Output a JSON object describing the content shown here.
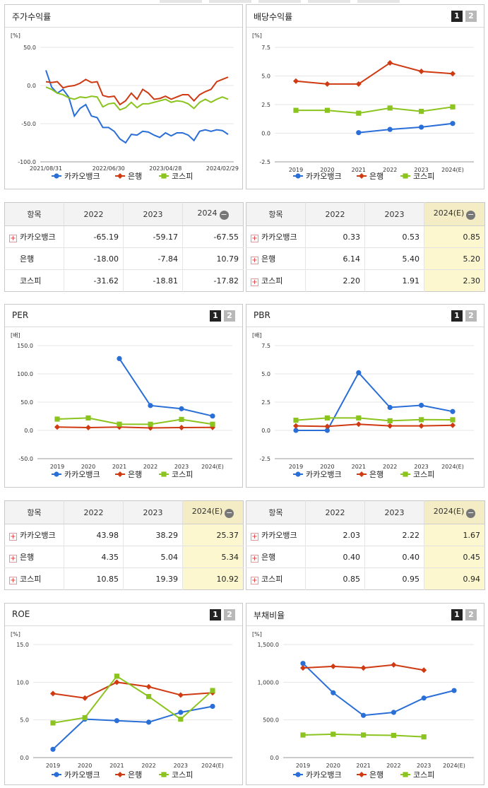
{
  "colors": {
    "kakao": "#2a6ed8",
    "bank": "#cf3a12",
    "kospi": "#8bc41e"
  },
  "legend": [
    "카카오뱅크",
    "은행",
    "코스피"
  ],
  "stock_return": {
    "title": "주가수익률",
    "unit": "[%]",
    "chart_data": {
      "type": "line",
      "title": "주가수익률",
      "ylabel": "[%]",
      "ylim": [
        -100,
        50
      ],
      "yticks": [
        "50.0",
        "0.0",
        "-50.0",
        "-100.0"
      ],
      "xticks": [
        "2021/08/31",
        "2022/06/30",
        "2023/04/28",
        "2024/02/29"
      ],
      "series": [
        {
          "name": "카카오뱅크",
          "values": [
            20,
            -2,
            -10,
            -5,
            -15,
            -40,
            -30,
            -25,
            -40,
            -42,
            -55,
            -55,
            -60,
            -70,
            -75,
            -64,
            -65,
            -60,
            -61,
            -65,
            -68,
            -62,
            -66,
            -62,
            -62,
            -65,
            -72,
            -60,
            -58,
            -60,
            -58,
            -59,
            -64
          ]
        },
        {
          "name": "은행",
          "values": [
            5,
            4,
            5,
            -3,
            -1,
            0,
            3,
            8,
            4,
            5,
            -13,
            -15,
            -14,
            -25,
            -20,
            -10,
            -18,
            -5,
            -10,
            -18,
            -17,
            -14,
            -18,
            -15,
            -12,
            -12,
            -20,
            -12,
            -8,
            -5,
            5,
            8,
            11
          ]
        },
        {
          "name": "코스피",
          "values": [
            -2,
            -5,
            -10,
            -12,
            -16,
            -18,
            -15,
            -16,
            -14,
            -15,
            -28,
            -24,
            -23,
            -32,
            -29,
            -22,
            -29,
            -24,
            -24,
            -22,
            -20,
            -18,
            -22,
            -20,
            -21,
            -24,
            -30,
            -22,
            -18,
            -22,
            -18,
            -15,
            -18
          ]
        }
      ]
    },
    "table": {
      "header": [
        "항목",
        "2022",
        "2023",
        "2024"
      ],
      "rows": [
        {
          "name": "카카오뱅크",
          "plus": true,
          "v": [
            "-65.19",
            "-59.17",
            "-67.55"
          ]
        },
        {
          "name": "은행",
          "plus": false,
          "v": [
            "-18.00",
            "-7.84",
            "10.79"
          ]
        },
        {
          "name": "코스피",
          "plus": false,
          "v": [
            "-31.62",
            "-18.81",
            "-17.82"
          ]
        }
      ]
    }
  },
  "dividend": {
    "title": "배당수익률",
    "unit": "[%]",
    "pages": [
      "1",
      "2"
    ],
    "chart_data": {
      "type": "line",
      "title": "배당수익률",
      "ylabel": "[%]",
      "ylim": [
        -2.5,
        7.5
      ],
      "yticks": [
        "7.5",
        "5.0",
        "2.5",
        "0.0",
        "-2.5"
      ],
      "categories": [
        "2019",
        "2020",
        "2021",
        "2022",
        "2023",
        "2024(E)"
      ],
      "series": [
        {
          "name": "카카오뱅크",
          "values": [
            null,
            null,
            0.05,
            0.33,
            0.53,
            0.85
          ]
        },
        {
          "name": "은행",
          "values": [
            4.55,
            4.3,
            4.3,
            6.14,
            5.4,
            5.2
          ]
        },
        {
          "name": "코스피",
          "values": [
            2.0,
            2.0,
            1.75,
            2.2,
            1.91,
            2.3
          ]
        }
      ]
    },
    "table": {
      "header": [
        "항목",
        "2022",
        "2023",
        "2024(E)"
      ],
      "rows": [
        {
          "name": "카카오뱅크",
          "plus": true,
          "v": [
            "0.33",
            "0.53",
            "0.85"
          ]
        },
        {
          "name": "은행",
          "plus": true,
          "v": [
            "6.14",
            "5.40",
            "5.20"
          ]
        },
        {
          "name": "코스피",
          "plus": true,
          "v": [
            "2.20",
            "1.91",
            "2.30"
          ]
        }
      ]
    }
  },
  "per": {
    "title": "PER",
    "unit": "[배]",
    "pages": [
      "1",
      "2"
    ],
    "chart_data": {
      "type": "line",
      "title": "PER",
      "ylabel": "[배]",
      "ylim": [
        -50,
        150
      ],
      "yticks": [
        "150.0",
        "100.0",
        "50.0",
        "0.0",
        "-50.0"
      ],
      "categories": [
        "2019",
        "2020",
        "2021",
        "2022",
        "2023",
        "2024(E)"
      ],
      "series": [
        {
          "name": "카카오뱅크",
          "values": [
            null,
            null,
            127,
            43.98,
            38.29,
            25.37
          ]
        },
        {
          "name": "은행",
          "values": [
            6,
            5,
            6,
            4.35,
            5.04,
            5.34
          ]
        },
        {
          "name": "코스피",
          "values": [
            20,
            22,
            11,
            10.85,
            19.39,
            10.92
          ]
        }
      ]
    },
    "table": {
      "header": [
        "항목",
        "2022",
        "2023",
        "2024(E)"
      ],
      "rows": [
        {
          "name": "카카오뱅크",
          "plus": true,
          "v": [
            "43.98",
            "38.29",
            "25.37"
          ]
        },
        {
          "name": "은행",
          "plus": true,
          "v": [
            "4.35",
            "5.04",
            "5.34"
          ]
        },
        {
          "name": "코스피",
          "plus": true,
          "v": [
            "10.85",
            "19.39",
            "10.92"
          ]
        }
      ]
    }
  },
  "pbr": {
    "title": "PBR",
    "unit": "[배]",
    "pages": [
      "1",
      "2"
    ],
    "chart_data": {
      "type": "line",
      "title": "PBR",
      "ylabel": "[배]",
      "ylim": [
        -2.5,
        7.5
      ],
      "yticks": [
        "7.5",
        "5.0",
        "2.5",
        "0.0",
        "-2.5"
      ],
      "categories": [
        "2019",
        "2020",
        "2021",
        "2022",
        "2023",
        "2024(E)"
      ],
      "series": [
        {
          "name": "카카오뱅크",
          "values": [
            0,
            0,
            5.1,
            2.03,
            2.22,
            1.67
          ]
        },
        {
          "name": "은행",
          "values": [
            0.4,
            0.35,
            0.55,
            0.4,
            0.4,
            0.45
          ]
        },
        {
          "name": "코스피",
          "values": [
            0.9,
            1.1,
            1.1,
            0.85,
            0.95,
            0.94
          ]
        }
      ]
    },
    "table": {
      "header": [
        "항목",
        "2022",
        "2023",
        "2024(E)"
      ],
      "rows": [
        {
          "name": "카카오뱅크",
          "plus": true,
          "v": [
            "2.03",
            "2.22",
            "1.67"
          ]
        },
        {
          "name": "은행",
          "plus": true,
          "v": [
            "0.40",
            "0.40",
            "0.45"
          ]
        },
        {
          "name": "코스피",
          "plus": true,
          "v": [
            "0.85",
            "0.95",
            "0.94"
          ]
        }
      ]
    }
  },
  "roe": {
    "title": "ROE",
    "unit": "[%]",
    "pages": [
      "1",
      "2"
    ],
    "chart_data": {
      "type": "line",
      "title": "ROE",
      "ylabel": "[%]",
      "ylim": [
        0,
        15
      ],
      "yticks": [
        "15.0",
        "10.0",
        "5.0",
        "0.0"
      ],
      "categories": [
        "2019",
        "2020",
        "2021",
        "2022",
        "2023",
        "2024(E)"
      ],
      "series": [
        {
          "name": "카카오뱅크",
          "values": [
            1.1,
            5.1,
            4.9,
            4.7,
            6.0,
            6.8
          ]
        },
        {
          "name": "은행",
          "values": [
            8.5,
            7.9,
            10.0,
            9.4,
            8.3,
            8.6
          ]
        },
        {
          "name": "코스피",
          "values": [
            4.6,
            5.3,
            10.8,
            8.1,
            5.1,
            8.9
          ]
        }
      ]
    }
  },
  "debt": {
    "title": "부채비율",
    "unit": "[%]",
    "pages": [
      "1",
      "2"
    ],
    "chart_data": {
      "type": "line",
      "title": "부채비율",
      "ylabel": "[%]",
      "ylim": [
        0,
        1500
      ],
      "yticks": [
        "1,500.0",
        "1,000.0",
        "500.0",
        "0.0"
      ],
      "categories": [
        "2019",
        "2020",
        "2021",
        "2022",
        "2023",
        "2024(E)"
      ],
      "series": [
        {
          "name": "카카오뱅크",
          "values": [
            1250,
            860,
            560,
            600,
            790,
            890
          ]
        },
        {
          "name": "은행",
          "values": [
            1190,
            1210,
            1190,
            1230,
            1160,
            null
          ]
        },
        {
          "name": "코스피",
          "values": [
            300,
            310,
            300,
            295,
            275,
            null
          ]
        }
      ]
    }
  }
}
